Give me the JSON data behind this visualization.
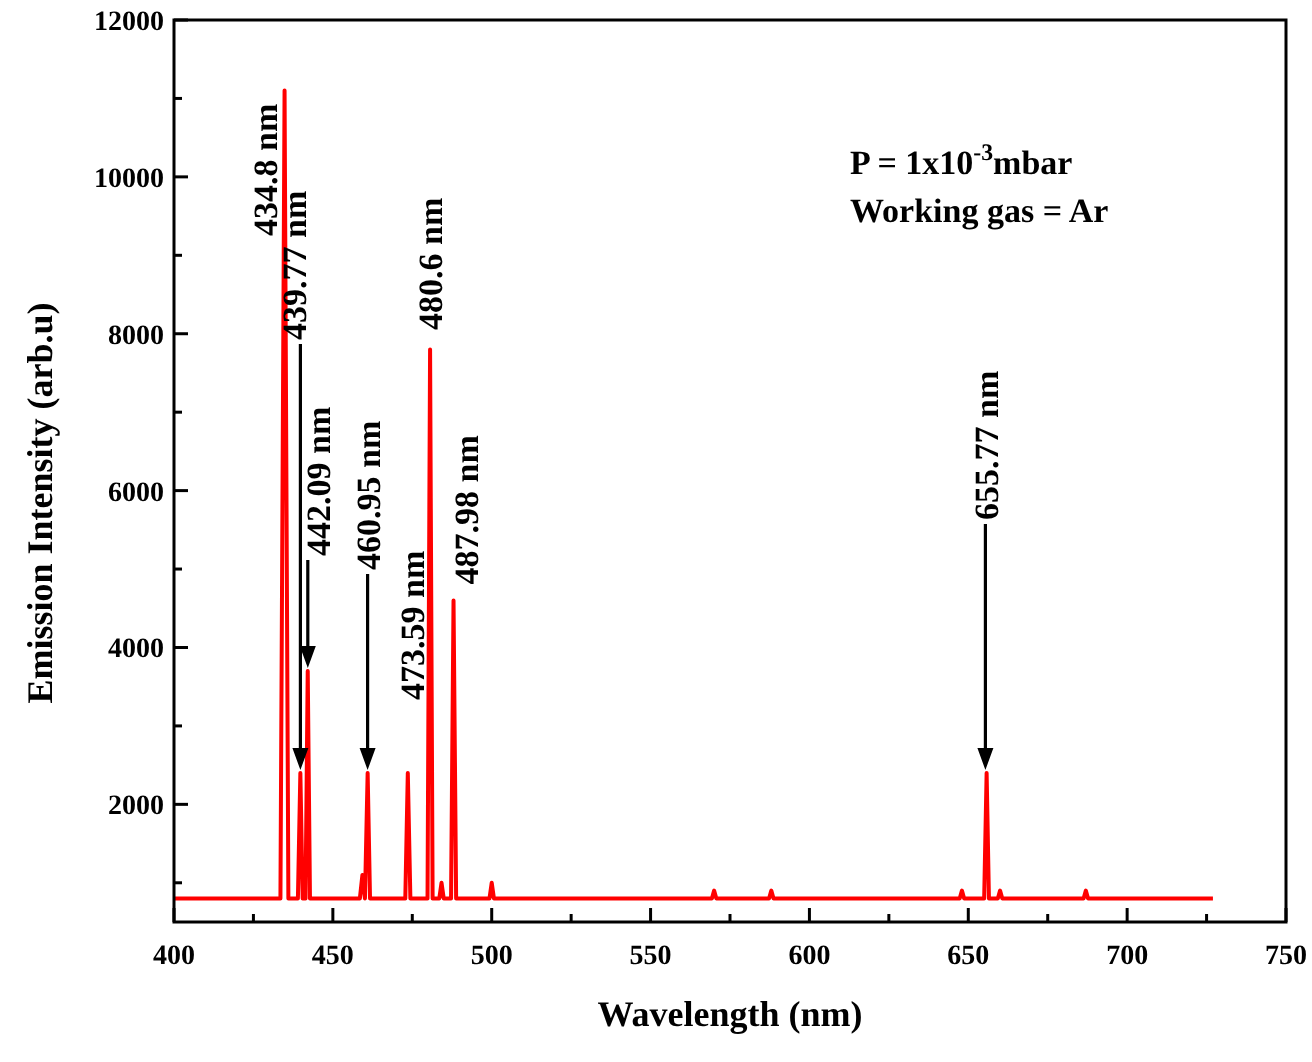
{
  "chart_data": {
    "type": "line",
    "xlabel": "Wavelength (nm)",
    "ylabel": "Emission Intensity (arb.u)",
    "xlim": [
      400,
      750
    ],
    "xticks": [
      400,
      450,
      500,
      550,
      600,
      650,
      700,
      750
    ],
    "ylim": [
      500,
      12000
    ],
    "yticks": [
      2000,
      4000,
      6000,
      8000,
      10000,
      12000
    ],
    "grid": false,
    "marker": "none",
    "line_style": "solid",
    "series": [
      {
        "color": "#ff0000",
        "x": [
          400,
          410,
          420,
          430,
          433.5,
          434.8,
          436,
          439,
          439.77,
          440.5,
          441.4,
          442.09,
          442.8,
          450,
          458.5,
          459.3,
          460.1,
          460.95,
          461.7,
          470,
          472.8,
          473.59,
          474.4,
          479.8,
          480.6,
          481.4,
          483.5,
          484.2,
          484.9,
          487.2,
          487.98,
          488.8,
          499.3,
          500,
          500.7,
          520,
          540,
          569.3,
          570,
          570.7,
          587.3,
          588,
          588.7,
          610,
          630,
          647.3,
          648,
          648.7,
          655,
          655.77,
          656.5,
          659.3,
          660,
          660.7,
          680,
          686.3,
          687,
          687.7,
          710,
          727
        ],
        "values": [
          800,
          800,
          800,
          800,
          800,
          11100,
          800,
          800,
          2400,
          800,
          800,
          3700,
          800,
          800,
          800,
          1100,
          800,
          2400,
          800,
          800,
          800,
          2400,
          800,
          800,
          7800,
          800,
          800,
          1000,
          800,
          800,
          4600,
          800,
          800,
          1000,
          800,
          800,
          800,
          800,
          900,
          800,
          800,
          900,
          800,
          800,
          800,
          800,
          900,
          800,
          800,
          2400,
          800,
          800,
          900,
          800,
          800,
          800,
          900,
          800,
          800,
          800
        ]
      }
    ],
    "annotations": [
      {
        "text": "434.8 nm",
        "x": 434.8,
        "y": 11100
      },
      "439.77 nm",
      "442.09 nm",
      "460.95 nm",
      {
        "text": "473.59 nm",
        "x": 473.59,
        "y": 2400
      },
      {
        "text": "480.6 nm",
        "x": 480.6,
        "y": 7800
      },
      {
        "text": "487.98 nm",
        "x": 487.98,
        "y": 4600
      },
      "655.77 nm",
      "P = 1x10$^{-3}$mbar",
      "Working gas = Ar"
    ]
  }
}
